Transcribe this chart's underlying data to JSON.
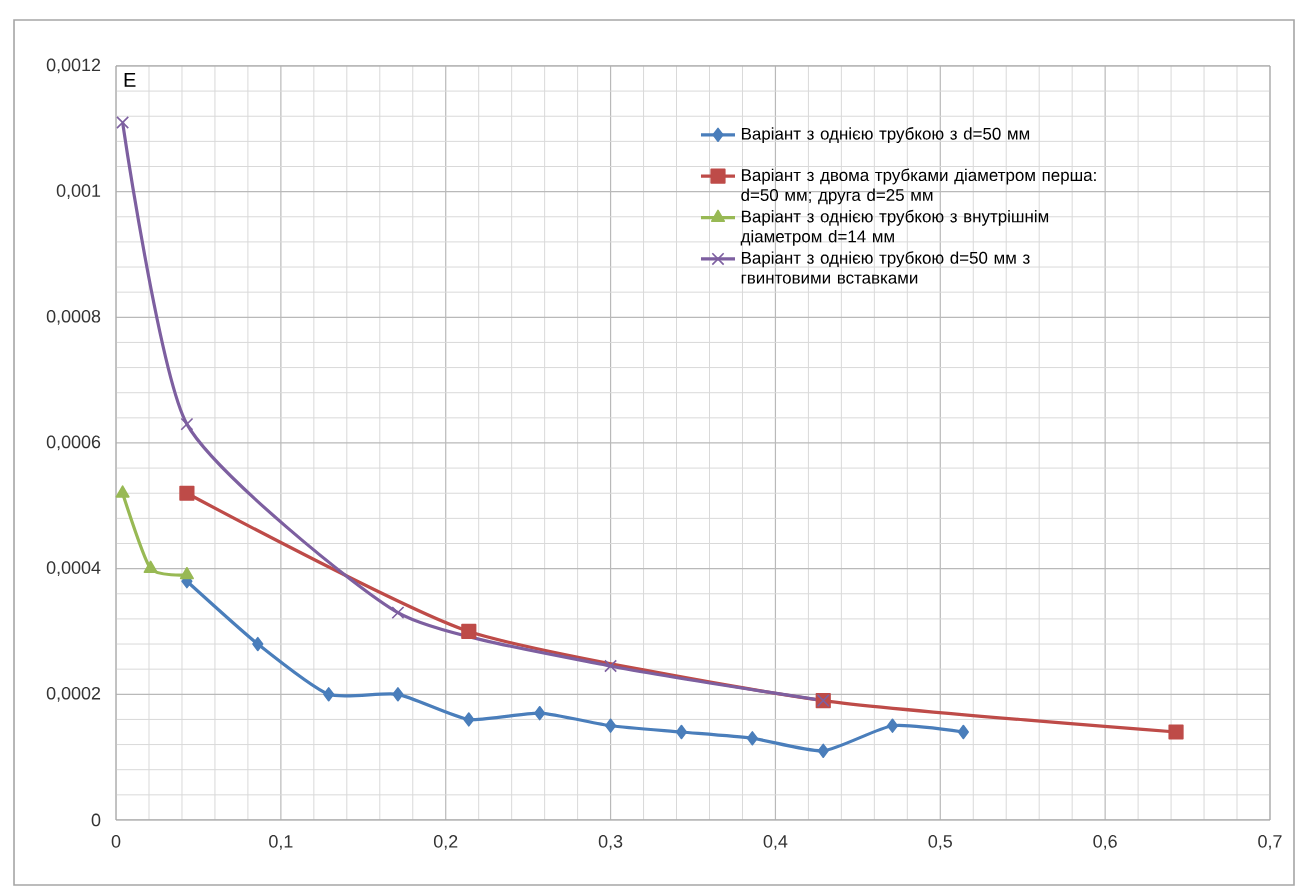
{
  "chart_data": {
    "type": "line",
    "ylabel": "E",
    "xlim": [
      0,
      0.7
    ],
    "ylim": [
      0,
      0.0012
    ],
    "xticks": [
      0,
      {
        "value": 0.1,
        "label": "0,1"
      },
      {
        "value": 0.2,
        "label": "0,2"
      },
      {
        "value": 0.3,
        "label": "0,3"
      },
      {
        "value": 0.4,
        "label": "0,4"
      },
      {
        "value": 0.5,
        "label": "0,5"
      },
      {
        "value": 0.6,
        "label": "0,6"
      },
      {
        "value": 0.7,
        "label": "0,7"
      }
    ],
    "yticks": [
      0,
      {
        "value": 0.0002,
        "label": "0,0002"
      },
      {
        "value": 0.0004,
        "label": "0,0004"
      },
      {
        "value": 0.0006,
        "label": "0,0006"
      },
      {
        "value": 0.0008,
        "label": "0,0008"
      },
      {
        "value": 0.001,
        "label": "0,001"
      },
      {
        "value": 0.0012,
        "label": "0,0012"
      }
    ],
    "grid": true,
    "legend": "top right",
    "series": [
      {
        "name": "Варіант з однією трубкою з d=50 мм",
        "color": "#4a7ebb",
        "marker": "diamond",
        "x": [
          0.043,
          0.086,
          0.129,
          0.171,
          0.214,
          0.257,
          0.3,
          0.343,
          0.386,
          0.429,
          0.471,
          0.514
        ],
        "values": [
          0.00038,
          0.00028,
          0.0002,
          0.0002,
          0.00016,
          0.00017,
          0.00015,
          0.00014,
          0.00013,
          0.00011,
          0.00015,
          0.00014
        ]
      },
      {
        "name": "Варіант з двома трубками діаметром перша: d=50 мм; друга d=25 мм",
        "color": "#be4b48",
        "marker": "square",
        "x": [
          0.043,
          0.214,
          0.429,
          0.643
        ],
        "values": [
          0.00052,
          0.0003,
          0.00019,
          0.00014
        ]
      },
      {
        "name": "Варіант з однією трубкою з внутрішнім діаметром d=14 мм",
        "color": "#98b954",
        "marker": "triangle",
        "x": [
          0.004,
          0.021,
          0.043
        ],
        "values": [
          0.00052,
          0.0004,
          0.00039
        ]
      },
      {
        "name": "Варіант з однією трубкою  d=50 мм з гвинтовими вставками",
        "color": "#7d5fa0",
        "marker": "cross",
        "x": [
          0.004,
          0.043,
          0.171,
          0.3,
          0.429
        ],
        "values": [
          0.00111,
          0.00063,
          0.00033,
          0.000245,
          0.00019
        ]
      }
    ]
  }
}
